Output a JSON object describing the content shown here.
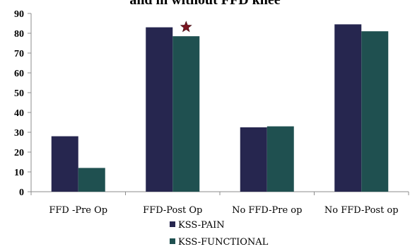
{
  "chart_data": {
    "type": "bar",
    "title": "and in without FFD knee",
    "categories": [
      "FFD -Pre Op",
      "FFD-Post Op",
      "No FFD-Pre op",
      "No FFD-Post op"
    ],
    "series": [
      {
        "name": "KSS-PAIN",
        "values": [
          28,
          83,
          32.5,
          84.5
        ]
      },
      {
        "name": "KSS-FUNCTIONAL",
        "values": [
          12,
          78.5,
          33,
          81
        ]
      }
    ],
    "ylim": [
      0,
      90
    ],
    "yticks": [
      0,
      10,
      20,
      30,
      40,
      50,
      60,
      70,
      80,
      90
    ],
    "grid": false,
    "legend_position": "bottom",
    "annotation": {
      "symbol": "star",
      "category_index": 1,
      "series_index": 1
    },
    "colors": {
      "KSS-PAIN": "#26264f",
      "KSS-FUNCTIONAL": "#1f5050",
      "star": "#7a1420"
    }
  }
}
